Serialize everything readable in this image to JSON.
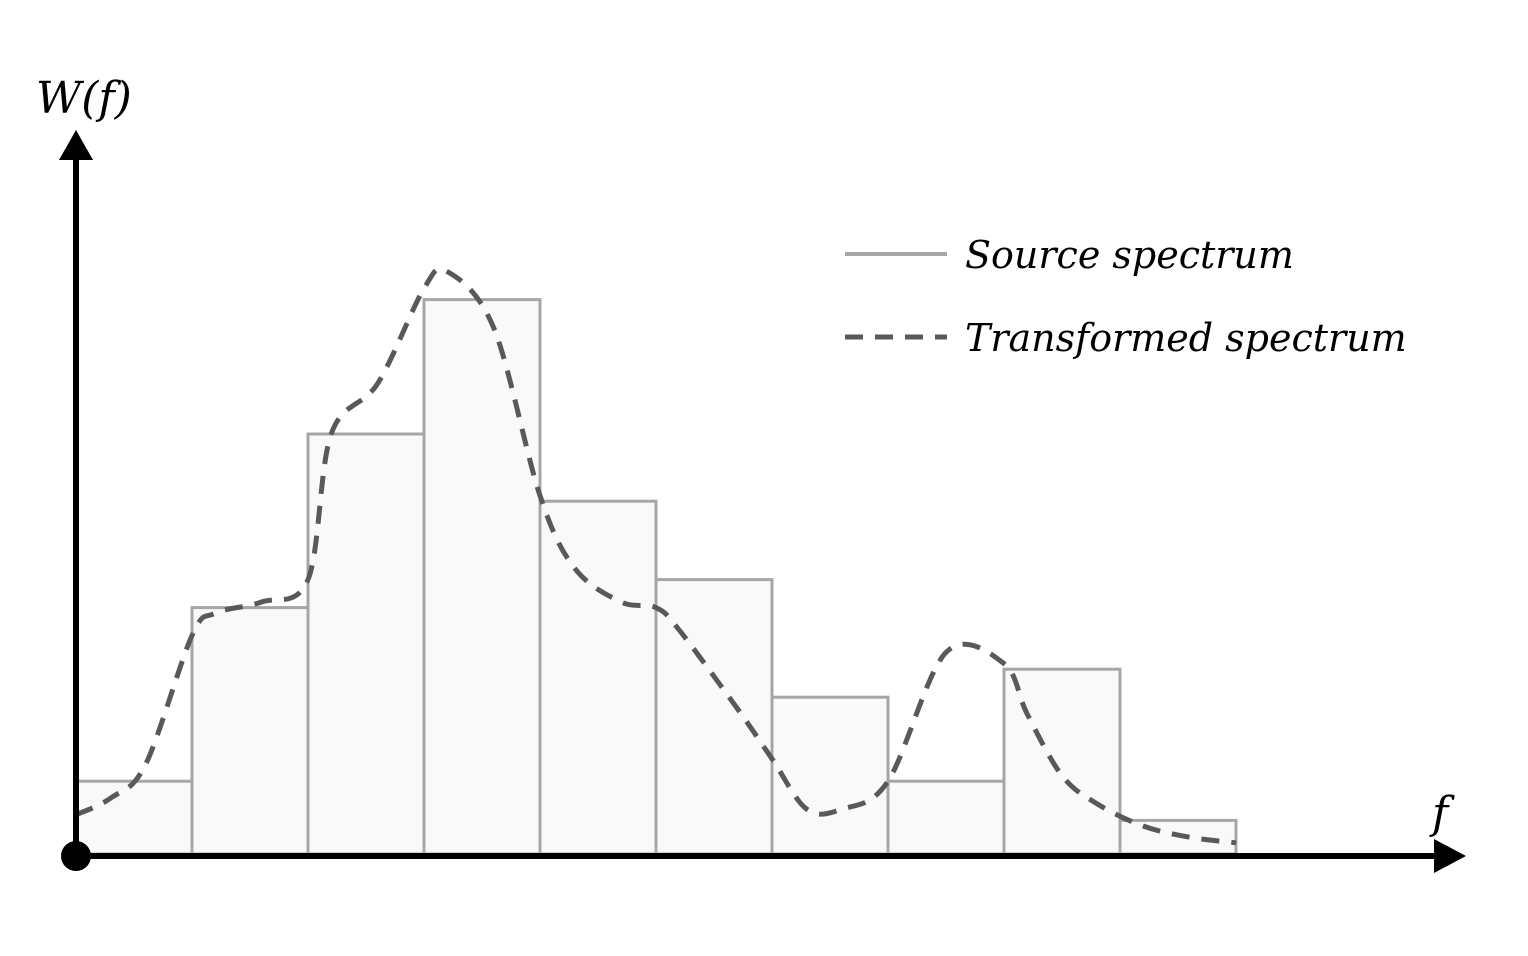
{
  "chart_data": {
    "type": "bar",
    "title": "",
    "ylabel": "W(f)",
    "xlabel": "f",
    "bin_count": 10,
    "ylim": [
      0,
      10
    ],
    "grid": false,
    "legend_position": "top-right",
    "series": [
      {
        "name": "Source spectrum",
        "style": "solid",
        "render": "histogram",
        "values": [
          1.3,
          4.4,
          7.5,
          9.9,
          6.3,
          4.9,
          2.8,
          1.3,
          3.3,
          0.6
        ]
      },
      {
        "name": "Transformed spectrum",
        "style": "dashed",
        "render": "smooth-line",
        "x": [
          0,
          0.3,
          0.6,
          1.0,
          1.2,
          1.6,
          2.0,
          2.2,
          2.6,
          3.0,
          3.2,
          3.6,
          4.0,
          4.3,
          4.7,
          5.0,
          5.2,
          5.7,
          6.0,
          6.3,
          6.6,
          7.0,
          7.5,
          8.0,
          8.2,
          8.5,
          8.8,
          9.2,
          9.6,
          10.0
        ],
        "y": [
          0.7,
          1.0,
          1.6,
          3.9,
          4.3,
          4.5,
          4.9,
          7.5,
          8.4,
          10.1,
          10.4,
          9.4,
          6.4,
          5.1,
          4.5,
          4.4,
          4.0,
          2.6,
          1.7,
          0.8,
          0.8,
          1.3,
          3.6,
          3.4,
          2.5,
          1.4,
          0.9,
          0.5,
          0.3,
          0.2
        ]
      }
    ],
    "colors": {
      "bar_fill": "#f9f9f9",
      "bar_stroke": "#a6a6a6",
      "dashed_line": "#595959",
      "axis": "#000000"
    }
  }
}
